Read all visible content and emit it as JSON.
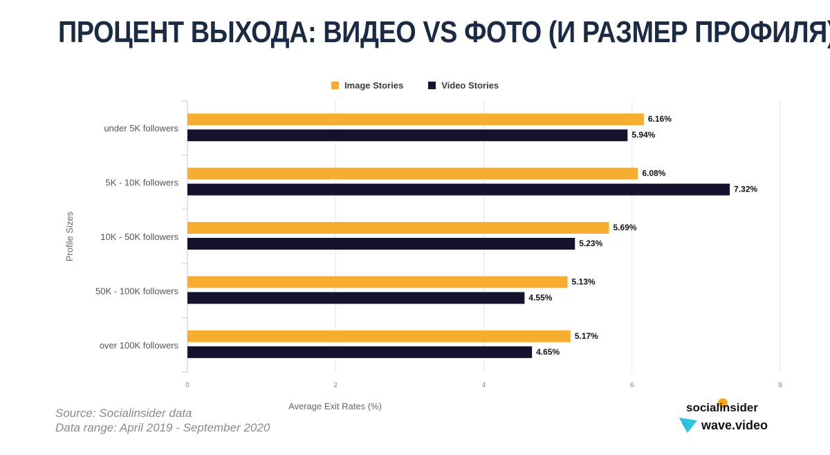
{
  "title": "ПРОЦЕНТ ВЫХОДА: ВИДЕО VS ФОТО (И РАЗМЕР ПРОФИЛЯ)",
  "source_line1": "Source: Socialinsider data",
  "source_line2": "Data range: April 2019 - September 2020",
  "logos": {
    "socialinsider": "socialinsider",
    "wavevideo": "wave.video"
  },
  "colors": {
    "image": "#f7ad30",
    "video": "#15122e",
    "grid": "#e3e3e3",
    "axis": "#c9c9c9"
  },
  "chart_data": {
    "type": "bar",
    "orientation": "horizontal",
    "categories": [
      "under 5K followers",
      "5K - 10K followers",
      "10K - 50K followers",
      "50K - 100K followers",
      "over 100K followers"
    ],
    "series": [
      {
        "name": "Image Stories",
        "values": [
          6.16,
          6.08,
          5.69,
          5.13,
          5.17
        ],
        "labels": [
          "6.16%",
          "6.08%",
          "5.69%",
          "5.13%",
          "5.17%"
        ]
      },
      {
        "name": "Video Stories",
        "values": [
          5.94,
          7.32,
          5.23,
          4.55,
          4.65
        ],
        "labels": [
          "5.94%",
          "7.32%",
          "5.23%",
          "4.55%",
          "4.65%"
        ]
      }
    ],
    "xlabel": "Average Exit Rates (%)",
    "ylabel": "Profile Sizes",
    "xlim": [
      0,
      8
    ],
    "xticks": [
      "0",
      "2",
      "4",
      "6",
      "8"
    ],
    "grid": true,
    "legend_position": "top-center"
  }
}
